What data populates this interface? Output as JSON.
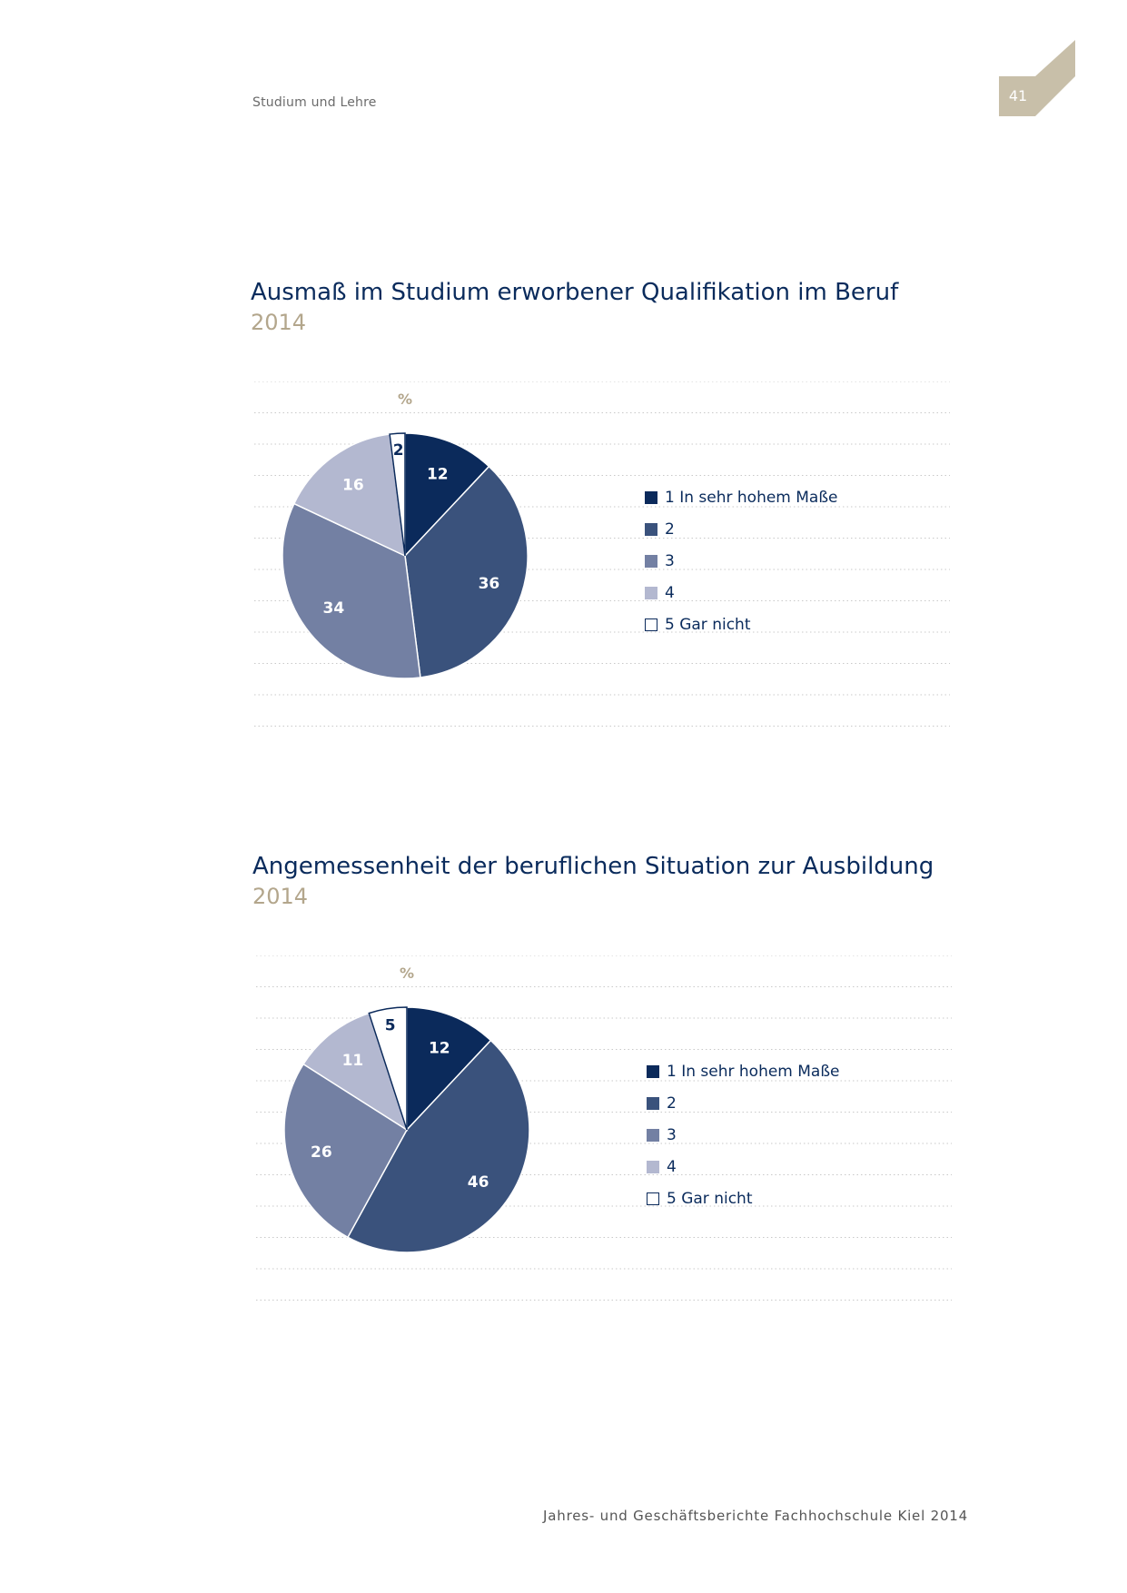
{
  "header": {
    "section": "Studium und Lehre",
    "page_number": "41",
    "tab_color": "#c8bfa9"
  },
  "footer": {
    "text": "Jahres- und Geschäftsberichte Fachhochschule Kiel 2014"
  },
  "colors": [
    "#0b2a5b",
    "#3a527c",
    "#7380a3",
    "#b3b8d0",
    "#ffffff"
  ],
  "chart_data": [
    {
      "type": "pie",
      "title": "Ausmaß im Studium erworbener Qualifikation im Beruf",
      "subtitle": "2014",
      "unit_label": "%",
      "categories": [
        "1 In sehr hohem Maße",
        "2",
        "3",
        "4",
        "5 Gar nicht"
      ],
      "values": [
        12,
        36,
        34,
        16,
        2
      ],
      "legend_placement": "right"
    },
    {
      "type": "pie",
      "title": "Angemessenheit der beruflichen Situation zur Ausbildung",
      "subtitle": "2014",
      "unit_label": "%",
      "categories": [
        "1 In sehr hohem Maße",
        "2",
        "3",
        "4",
        "5 Gar nicht"
      ],
      "values": [
        12,
        46,
        26,
        11,
        5
      ],
      "legend_placement": "right"
    }
  ]
}
